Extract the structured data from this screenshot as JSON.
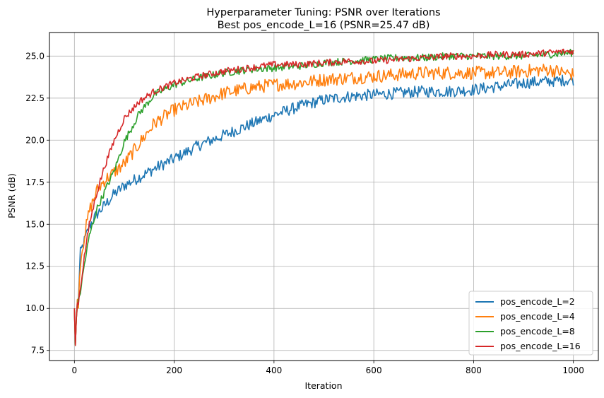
{
  "chart_data": {
    "type": "line",
    "title": "Hyperparameter Tuning: PSNR over Iterations",
    "subtitle": "Best pos_encode_L=16 (PSNR=25.47 dB)",
    "xlabel": "Iteration",
    "ylabel": "PSNR (dB)",
    "xlim": [
      -50,
      1050
    ],
    "ylim": [
      6.9,
      26.4
    ],
    "xticks": [
      0,
      200,
      400,
      600,
      800,
      1000
    ],
    "yticks": [
      7.5,
      10.0,
      12.5,
      15.0,
      17.5,
      20.0,
      22.5,
      25.0
    ],
    "xtick_labels": [
      "0",
      "200",
      "400",
      "600",
      "800",
      "1000"
    ],
    "ytick_labels": [
      "7.5",
      "10.0",
      "12.5",
      "15.0",
      "17.5",
      "20.0",
      "22.5",
      "25.0"
    ],
    "grid": true,
    "legend_position": "lower-right",
    "series": [
      {
        "name": "pos_encode_L=2",
        "color": "#1f77b4",
        "noise": 0.35,
        "x": [
          0,
          2,
          5,
          8,
          12,
          20,
          30,
          45,
          60,
          80,
          100,
          130,
          160,
          200,
          250,
          300,
          350,
          400,
          450,
          500,
          550,
          600,
          650,
          700,
          750,
          800,
          850,
          900,
          950,
          1000
        ],
        "y": [
          9.8,
          7.9,
          10.3,
          10.6,
          13.3,
          14.0,
          14.9,
          15.6,
          16.1,
          16.8,
          17.3,
          17.8,
          18.3,
          18.9,
          19.7,
          20.3,
          20.9,
          21.5,
          22.0,
          22.4,
          22.6,
          22.7,
          22.8,
          22.9,
          22.9,
          23.0,
          23.2,
          23.4,
          23.5,
          23.6
        ]
      },
      {
        "name": "pos_encode_L=4",
        "color": "#ff7f0e",
        "noise": 0.4,
        "x": [
          0,
          2,
          5,
          8,
          12,
          20,
          30,
          45,
          60,
          80,
          100,
          130,
          160,
          200,
          250,
          300,
          350,
          400,
          450,
          500,
          550,
          600,
          650,
          700,
          750,
          800,
          850,
          900,
          950,
          1000
        ],
        "y": [
          9.9,
          7.8,
          10.2,
          10.4,
          12.8,
          14.3,
          15.8,
          17.0,
          17.6,
          18.1,
          18.6,
          19.8,
          21.0,
          21.8,
          22.3,
          22.8,
          23.1,
          23.3,
          23.4,
          23.6,
          23.7,
          23.8,
          23.9,
          24.0,
          24.0,
          24.0,
          24.0,
          24.1,
          24.2,
          23.9
        ]
      },
      {
        "name": "pos_encode_L=8",
        "color": "#2ca02c",
        "noise": 0.22,
        "x": [
          0,
          2,
          5,
          8,
          12,
          20,
          30,
          45,
          60,
          80,
          100,
          130,
          160,
          200,
          250,
          300,
          350,
          400,
          450,
          500,
          550,
          600,
          650,
          700,
          750,
          800,
          850,
          900,
          950,
          1000
        ],
        "y": [
          10.0,
          7.8,
          10.2,
          10.4,
          11.0,
          12.6,
          14.3,
          15.9,
          16.9,
          18.2,
          19.9,
          21.6,
          22.7,
          23.3,
          23.7,
          24.0,
          24.2,
          24.3,
          24.4,
          24.6,
          24.7,
          24.8,
          24.9,
          24.9,
          25.0,
          25.0,
          25.0,
          25.0,
          25.1,
          25.2
        ]
      },
      {
        "name": "pos_encode_L=16",
        "color": "#d62728",
        "noise": 0.2,
        "x": [
          0,
          2,
          5,
          8,
          12,
          20,
          30,
          45,
          60,
          80,
          100,
          130,
          160,
          200,
          250,
          300,
          350,
          400,
          450,
          500,
          550,
          600,
          650,
          700,
          750,
          800,
          850,
          900,
          950,
          1000
        ],
        "y": [
          10.0,
          7.8,
          10.2,
          10.4,
          11.2,
          13.1,
          15.0,
          16.9,
          18.4,
          20.0,
          21.3,
          22.3,
          22.9,
          23.4,
          23.8,
          24.1,
          24.3,
          24.5,
          24.5,
          24.6,
          24.7,
          24.7,
          24.8,
          24.9,
          25.0,
          25.0,
          25.1,
          25.1,
          25.2,
          25.3
        ]
      }
    ]
  }
}
